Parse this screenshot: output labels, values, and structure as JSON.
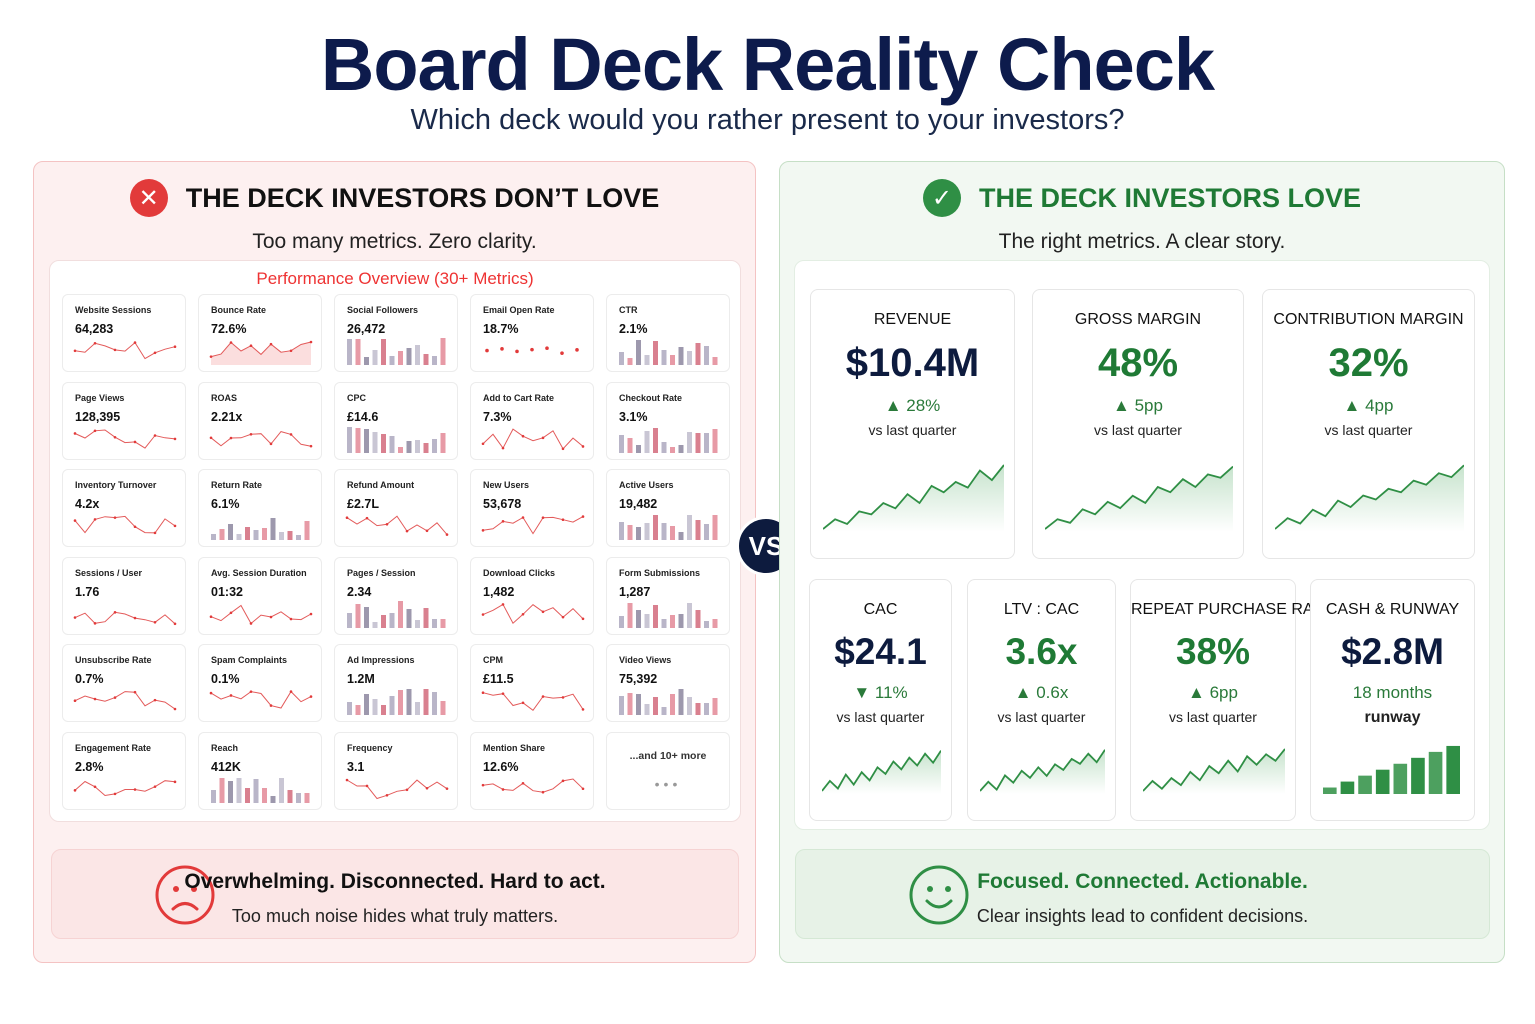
{
  "header": {
    "title": "Board Deck Reality Check",
    "subtitle": "Which deck would you rather present to your investors?"
  },
  "bad": {
    "title": "THE DECK INVESTORS DON’T LOVE",
    "subtitle": "Too many metrics. Zero clarity.",
    "icon": "x-circle-icon",
    "grid_title": "Performance Overview (30+ Metrics)",
    "metrics": [
      {
        "label": "Website Sessions",
        "value": "64,283",
        "spark": "line"
      },
      {
        "label": "Bounce Rate",
        "value": "72.6%",
        "spark": "area"
      },
      {
        "label": "Social Followers",
        "value": "26,472",
        "spark": "bars"
      },
      {
        "label": "Email Open Rate",
        "value": "18.7%",
        "spark": "dots"
      },
      {
        "label": "CTR",
        "value": "2.1%",
        "spark": "bars"
      },
      {
        "label": "Page Views",
        "value": "128,395",
        "spark": "line"
      },
      {
        "label": "ROAS",
        "value": "2.21x",
        "spark": "line"
      },
      {
        "label": "CPC",
        "value": "£14.6",
        "spark": "bars"
      },
      {
        "label": "Add to Cart Rate",
        "value": "7.3%",
        "spark": "line"
      },
      {
        "label": "Checkout Rate",
        "value": "3.1%",
        "spark": "bars"
      },
      {
        "label": "Inventory Turnover",
        "value": "4.2x",
        "spark": "line"
      },
      {
        "label": "Return Rate",
        "value": "6.1%",
        "spark": "bars"
      },
      {
        "label": "Refund Amount",
        "value": "£2.7L",
        "spark": "line"
      },
      {
        "label": "New Users",
        "value": "53,678",
        "spark": "line"
      },
      {
        "label": "Active Users",
        "value": "19,482",
        "spark": "bars"
      },
      {
        "label": "Sessions / User",
        "value": "1.76",
        "spark": "line"
      },
      {
        "label": "Avg. Session Duration",
        "value": "01:32",
        "spark": "line"
      },
      {
        "label": "Pages / Session",
        "value": "2.34",
        "spark": "bars"
      },
      {
        "label": "Download Clicks",
        "value": "1,482",
        "spark": "line"
      },
      {
        "label": "Form Submissions",
        "value": "1,287",
        "spark": "bars"
      },
      {
        "label": "Unsubscribe Rate",
        "value": "0.7%",
        "spark": "line"
      },
      {
        "label": "Spam Complaints",
        "value": "0.1%",
        "spark": "line"
      },
      {
        "label": "Ad Impressions",
        "value": "1.2M",
        "spark": "bars"
      },
      {
        "label": "CPM",
        "value": "£11.5",
        "spark": "line"
      },
      {
        "label": "Video Views",
        "value": "75,392",
        "spark": "bars"
      },
      {
        "label": "Engagement Rate",
        "value": "2.8%",
        "spark": "line"
      },
      {
        "label": "Reach",
        "value": "412K",
        "spark": "bars"
      },
      {
        "label": "Frequency",
        "value": "3.1",
        "spark": "line"
      },
      {
        "label": "Mention Share",
        "value": "12.6%",
        "spark": "line"
      }
    ],
    "more": "...and 10+ more",
    "footer_title": "Overwhelming. Disconnected. Hard to act.",
    "footer_sub": "Too much noise hides what truly matters.",
    "face_icon": "sad-face-icon"
  },
  "vs": "VS",
  "good": {
    "title": "THE DECK INVESTORS LOVE",
    "subtitle": "The right metrics. A clear story.",
    "icon": "check-circle-icon",
    "kpis_top": [
      {
        "label": "REVENUE",
        "value": "$10.4M",
        "delta": "▲ 28%",
        "note": "vs last quarter",
        "value_color": "#0d1b3e"
      },
      {
        "label": "GROSS MARGIN",
        "value": "48%",
        "delta": "▲ 5pp",
        "note": "vs last quarter",
        "value_color": "#1f7a35"
      },
      {
        "label": "CONTRIBUTION MARGIN",
        "value": "32%",
        "delta": "▲ 4pp",
        "note": "vs last quarter",
        "value_color": "#1f7a35"
      }
    ],
    "kpis_bottom": [
      {
        "label": "CAC",
        "value": "$24.1",
        "delta": "▼ 11%",
        "note": "vs last quarter",
        "value_color": "#0d1b3e"
      },
      {
        "label": "LTV : CAC",
        "value": "3.6x",
        "delta": "▲ 0.6x",
        "note": "vs last quarter",
        "value_color": "#1f7a35"
      },
      {
        "label": "REPEAT PURCHASE RATE",
        "value": "38%",
        "delta": "▲ 6pp",
        "note": "vs last quarter",
        "value_color": "#1f7a35"
      },
      {
        "label": "CASH & RUNWAY",
        "value": "$2.8M",
        "delta": "18 months",
        "note": "runway",
        "value_color": "#0d1b3e"
      }
    ],
    "footer_title": "Focused. Connected. Actionable.",
    "footer_sub": "Clear insights lead to confident decisions.",
    "face_icon": "happy-face-icon"
  },
  "colors": {
    "bad_accent": "#e23a3a",
    "good_accent": "#1f7a35",
    "navy": "#0d1b3e"
  }
}
